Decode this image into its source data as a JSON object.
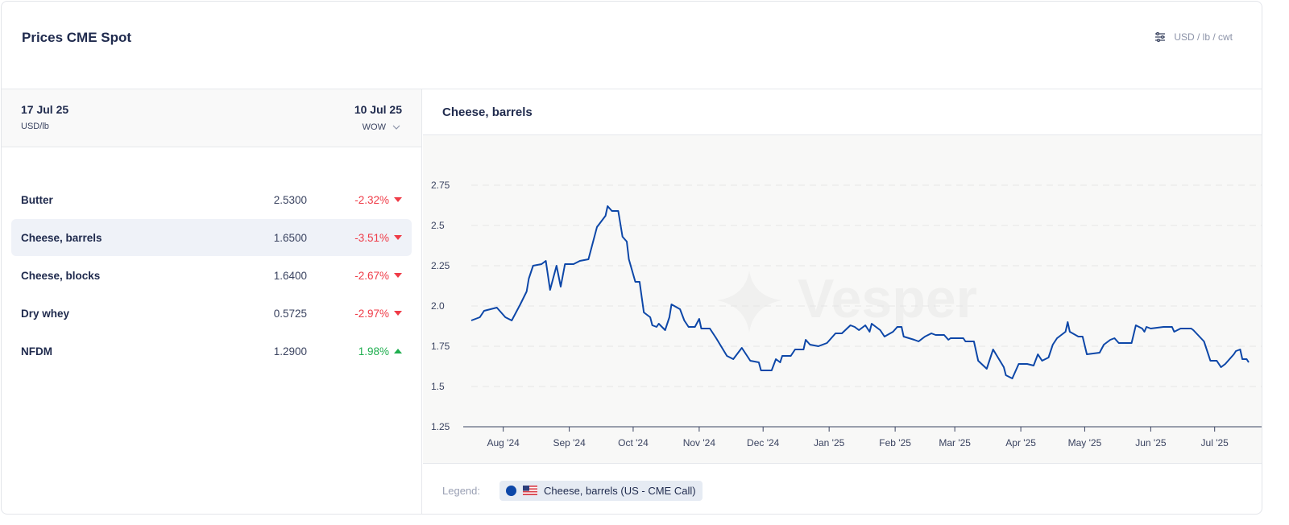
{
  "header": {
    "title": "Prices CME Spot",
    "units_label": "USD / lb / cwt",
    "units_icon": "sliders-icon"
  },
  "table": {
    "current_date": "17 Jul 25",
    "unit": "USD/lb",
    "compare_date": "10 Jul 25",
    "compare_mode": "WOW",
    "rows": [
      {
        "name": "Butter",
        "value": "2.5300",
        "change": "-2.32%",
        "direction": "down"
      },
      {
        "name": "Cheese, barrels",
        "value": "1.6500",
        "change": "-3.51%",
        "direction": "down",
        "selected": true
      },
      {
        "name": "Cheese, blocks",
        "value": "1.6400",
        "change": "-2.67%",
        "direction": "down"
      },
      {
        "name": "Dry whey",
        "value": "0.5725",
        "change": "-2.97%",
        "direction": "down"
      },
      {
        "name": "NFDM",
        "value": "1.2900",
        "change": "1.98%",
        "direction": "up"
      }
    ]
  },
  "colors": {
    "series": "#0d47a8",
    "negative": "#ef3b47",
    "positive": "#1fae4f"
  },
  "legend": {
    "label": "Legend:",
    "series_label": "Cheese, barrels (US - CME Call)"
  },
  "chart_data": {
    "type": "line",
    "title": "Cheese, barrels",
    "xlabel": "",
    "ylabel": "",
    "ylim": [
      1.25,
      2.75
    ],
    "yticks": [
      "1.25",
      "1.5",
      "1.75",
      "2.0",
      "2.25",
      "2.5",
      "2.75"
    ],
    "ytick_values": [
      1.25,
      1.5,
      1.75,
      2.0,
      2.25,
      2.5,
      2.75
    ],
    "x_unit": "days since 17 Jul 2024",
    "xlim": [
      0,
      365
    ],
    "xticks": [
      "Aug '24",
      "Sep '24",
      "Oct '24",
      "Nov '24",
      "Dec '24",
      "Jan '25",
      "Feb '25",
      "Mar '25",
      "Apr '25",
      "May '25",
      "Jun '25",
      "Jul '25"
    ],
    "xtick_values": [
      15,
      46,
      76,
      107,
      137,
      168,
      199,
      227,
      258,
      288,
      319,
      349
    ],
    "grid": "horizontal-dashed",
    "watermark": "Vesper",
    "series": [
      {
        "name": "Cheese, barrels (US - CME Call)",
        "x": [
          0,
          4,
          6,
          12,
          16,
          19,
          21,
          23,
          26,
          27,
          29,
          33,
          35,
          37,
          40,
          42,
          44,
          48,
          51,
          55,
          59,
          63,
          64,
          66,
          69,
          71,
          73,
          74,
          77,
          79,
          81,
          84,
          85,
          87,
          88,
          91,
          93,
          94,
          98,
          100,
          102,
          105,
          107,
          108,
          112,
          115,
          120,
          123,
          127,
          131,
          135,
          136,
          141,
          143,
          145,
          146,
          150,
          152,
          156,
          157,
          159,
          163,
          167,
          171,
          174,
          178,
          180,
          182,
          185,
          187,
          188,
          192,
          194,
          198,
          200,
          202,
          203,
          208,
          210,
          213,
          216,
          218,
          222,
          224,
          225,
          229,
          231,
          232,
          236,
          238,
          242,
          245,
          250,
          251,
          254,
          257,
          261,
          264,
          266,
          268,
          271,
          273,
          275,
          279,
          280,
          281,
          285,
          287,
          289,
          295,
          297,
          300,
          302,
          304,
          310,
          312,
          315,
          316,
          317,
          319,
          325,
          329,
          330,
          333,
          338,
          339,
          344,
          346,
          347,
          350,
          352,
          354,
          358,
          359,
          361,
          362,
          364,
          365
        ],
        "values": [
          1.91,
          1.93,
          1.97,
          1.99,
          1.93,
          1.91,
          1.96,
          2.01,
          2.09,
          2.17,
          2.25,
          2.26,
          2.28,
          2.1,
          2.25,
          2.12,
          2.26,
          2.26,
          2.28,
          2.29,
          2.49,
          2.56,
          2.62,
          2.59,
          2.59,
          2.43,
          2.4,
          2.29,
          2.15,
          2.15,
          1.96,
          1.93,
          1.88,
          1.87,
          1.89,
          1.85,
          1.93,
          2.01,
          1.98,
          1.91,
          1.87,
          1.87,
          1.92,
          1.86,
          1.86,
          1.8,
          1.69,
          1.67,
          1.74,
          1.66,
          1.65,
          1.6,
          1.6,
          1.67,
          1.65,
          1.69,
          1.69,
          1.73,
          1.73,
          1.79,
          1.76,
          1.75,
          1.77,
          1.83,
          1.83,
          1.88,
          1.87,
          1.85,
          1.88,
          1.84,
          1.89,
          1.85,
          1.81,
          1.84,
          1.87,
          1.87,
          1.81,
          1.79,
          1.78,
          1.81,
          1.83,
          1.82,
          1.82,
          1.79,
          1.8,
          1.8,
          1.8,
          1.78,
          1.78,
          1.66,
          1.61,
          1.73,
          1.62,
          1.57,
          1.55,
          1.64,
          1.64,
          1.63,
          1.7,
          1.66,
          1.68,
          1.76,
          1.8,
          1.84,
          1.9,
          1.84,
          1.81,
          1.81,
          1.7,
          1.71,
          1.76,
          1.79,
          1.8,
          1.77,
          1.77,
          1.88,
          1.86,
          1.84,
          1.87,
          1.86,
          1.87,
          1.87,
          1.84,
          1.86,
          1.86,
          1.85,
          1.78,
          1.7,
          1.66,
          1.66,
          1.62,
          1.64,
          1.7,
          1.72,
          1.73,
          1.67,
          1.67,
          1.65
        ]
      }
    ]
  }
}
